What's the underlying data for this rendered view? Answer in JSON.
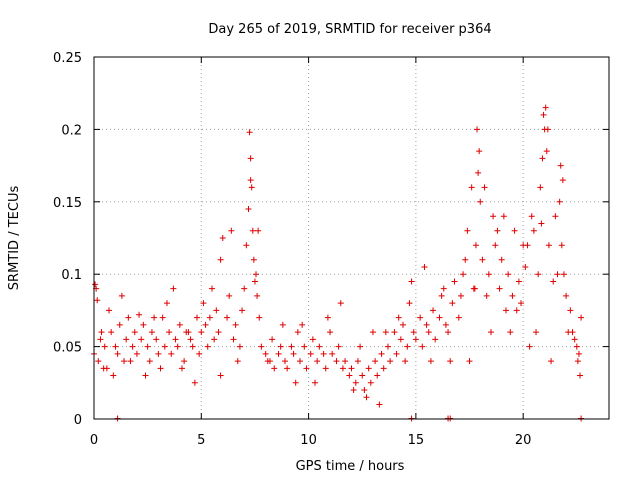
{
  "chart_data": {
    "type": "scatter",
    "title": "Day 265 of 2019, SRMTID for receiver p364",
    "xlabel": "GPS time / hours",
    "ylabel": "SRMTID / TECUs",
    "xlim": [
      0,
      24
    ],
    "ylim": [
      0,
      0.25
    ],
    "xticks": [
      0,
      5,
      10,
      15,
      20
    ],
    "xtick_labels": [
      "0",
      "5",
      "10",
      "15",
      "20"
    ],
    "yticks": [
      0,
      0.05,
      0.1,
      0.15,
      0.2,
      0.25
    ],
    "ytick_labels": [
      "0",
      "0.05",
      "0.1",
      "0.15",
      "0.2",
      "0.25"
    ],
    "grid": true,
    "marker": "+",
    "color": "#e00000",
    "series": [
      {
        "name": "SRMTID",
        "x": [
          0.0,
          0.1,
          0.2,
          0.3,
          0.5,
          0.6,
          0.8,
          1.0,
          1.1,
          1.2,
          1.4,
          1.5,
          1.6,
          1.8,
          1.9,
          2.0,
          2.2,
          2.3,
          2.5,
          2.6,
          2.7,
          2.9,
          3.0,
          3.2,
          3.3,
          3.5,
          3.6,
          3.8,
          3.9,
          4.0,
          4.2,
          4.3,
          4.5,
          4.6,
          4.8,
          4.9,
          5.0,
          5.2,
          5.3,
          5.4,
          5.6,
          5.7,
          5.8,
          5.9,
          6.0,
          6.2,
          6.3,
          6.5,
          6.6,
          6.8,
          6.9,
          7.0,
          7.1,
          7.2,
          7.3,
          7.4,
          7.5,
          7.6,
          7.7,
          7.8,
          8.0,
          8.1,
          8.3,
          8.4,
          8.6,
          8.7,
          8.9,
          9.0,
          9.2,
          9.3,
          9.5,
          9.6,
          9.8,
          9.9,
          10.1,
          10.2,
          10.4,
          10.5,
          10.7,
          10.8,
          11.0,
          11.1,
          11.3,
          11.4,
          11.6,
          11.7,
          11.9,
          12.0,
          12.2,
          12.3,
          12.5,
          12.6,
          12.8,
          12.9,
          13.1,
          13.2,
          13.4,
          13.5,
          13.7,
          13.8,
          14.0,
          14.1,
          14.3,
          14.4,
          14.6,
          14.7,
          14.9,
          15.0,
          15.2,
          15.3,
          15.5,
          15.6,
          15.8,
          15.9,
          16.1,
          16.2,
          16.4,
          16.5,
          16.7,
          16.8,
          17.0,
          17.1,
          17.3,
          17.4,
          17.6,
          17.7,
          17.8,
          17.9,
          18.0,
          18.1,
          18.3,
          18.4,
          18.6,
          18.7,
          18.9,
          19.0,
          19.2,
          19.3,
          19.5,
          19.6,
          19.8,
          19.9,
          20.1,
          20.2,
          20.4,
          20.5,
          20.7,
          20.8,
          20.9,
          21.0,
          21.1,
          21.2,
          21.4,
          21.5,
          21.7,
          21.8,
          21.9,
          22.0,
          22.2,
          22.3,
          22.5,
          22.6,
          22.7,
          0.05,
          0.15,
          0.35,
          0.45,
          0.7,
          0.9,
          1.3,
          1.7,
          2.1,
          2.4,
          2.8,
          3.1,
          3.4,
          3.7,
          4.1,
          4.4,
          4.7,
          5.1,
          5.5,
          5.9,
          6.4,
          6.7,
          7.25,
          7.3,
          7.35,
          7.45,
          7.55,
          7.65,
          8.2,
          8.8,
          9.4,
          9.7,
          10.3,
          10.9,
          11.5,
          12.1,
          12.4,
          12.7,
          13.0,
          13.3,
          13.6,
          14.2,
          14.5,
          14.8,
          15.4,
          15.7,
          16.3,
          16.6,
          17.2,
          17.5,
          17.75,
          17.85,
          17.95,
          18.2,
          18.5,
          18.8,
          19.1,
          19.4,
          19.7,
          20.0,
          20.3,
          20.6,
          20.85,
          20.95,
          21.05,
          21.15,
          21.3,
          21.6,
          21.75,
          21.85,
          22.1,
          22.4,
          22.55,
          22.65,
          1.1,
          14.8,
          16.5,
          16.6,
          22.7
        ],
        "y": [
          0.045,
          0.09,
          0.04,
          0.055,
          0.05,
          0.035,
          0.06,
          0.05,
          0.045,
          0.065,
          0.04,
          0.055,
          0.07,
          0.05,
          0.06,
          0.045,
          0.055,
          0.065,
          0.05,
          0.04,
          0.06,
          0.055,
          0.045,
          0.07,
          0.05,
          0.06,
          0.045,
          0.055,
          0.05,
          0.065,
          0.04,
          0.06,
          0.055,
          0.05,
          0.07,
          0.045,
          0.06,
          0.065,
          0.05,
          0.07,
          0.055,
          0.075,
          0.06,
          0.11,
          0.125,
          0.07,
          0.085,
          0.055,
          0.065,
          0.05,
          0.075,
          0.09,
          0.12,
          0.145,
          0.165,
          0.13,
          0.095,
          0.085,
          0.07,
          0.05,
          0.045,
          0.04,
          0.055,
          0.035,
          0.045,
          0.05,
          0.04,
          0.035,
          0.05,
          0.045,
          0.06,
          0.04,
          0.05,
          0.035,
          0.045,
          0.055,
          0.04,
          0.05,
          0.045,
          0.035,
          0.06,
          0.045,
          0.04,
          0.05,
          0.035,
          0.04,
          0.03,
          0.035,
          0.025,
          0.04,
          0.03,
          0.02,
          0.035,
          0.025,
          0.04,
          0.03,
          0.045,
          0.035,
          0.05,
          0.04,
          0.06,
          0.045,
          0.055,
          0.065,
          0.05,
          0.08,
          0.06,
          0.055,
          0.07,
          0.05,
          0.065,
          0.06,
          0.075,
          0.055,
          0.07,
          0.085,
          0.065,
          0.06,
          0.08,
          0.095,
          0.07,
          0.085,
          0.11,
          0.13,
          0.16,
          0.09,
          0.12,
          0.17,
          0.15,
          0.11,
          0.085,
          0.1,
          0.14,
          0.12,
          0.09,
          0.11,
          0.075,
          0.1,
          0.085,
          0.13,
          0.095,
          0.08,
          0.105,
          0.12,
          0.14,
          0.13,
          0.1,
          0.16,
          0.18,
          0.2,
          0.185,
          0.12,
          0.095,
          0.14,
          0.15,
          0.12,
          0.1,
          0.085,
          0.075,
          0.06,
          0.05,
          0.045,
          0.07,
          0.093,
          0.082,
          0.06,
          0.035,
          0.075,
          0.03,
          0.085,
          0.04,
          0.072,
          0.03,
          0.07,
          0.035,
          0.08,
          0.09,
          0.035,
          0.06,
          0.025,
          0.08,
          0.09,
          0.03,
          0.13,
          0.04,
          0.198,
          0.18,
          0.16,
          0.11,
          0.1,
          0.13,
          0.04,
          0.065,
          0.025,
          0.065,
          0.025,
          0.07,
          0.08,
          0.02,
          0.05,
          0.015,
          0.06,
          0.01,
          0.06,
          0.07,
          0.04,
          0.095,
          0.105,
          0.04,
          0.09,
          0.04,
          0.1,
          0.04,
          0.09,
          0.2,
          0.185,
          0.16,
          0.06,
          0.13,
          0.14,
          0.06,
          0.075,
          0.12,
          0.05,
          0.06,
          0.135,
          0.21,
          0.215,
          0.2,
          0.04,
          0.1,
          0.175,
          0.165,
          0.06,
          0.055,
          0.04,
          0.03,
          0.0,
          0.0,
          0.0,
          0.0,
          0.0
        ]
      }
    ]
  }
}
